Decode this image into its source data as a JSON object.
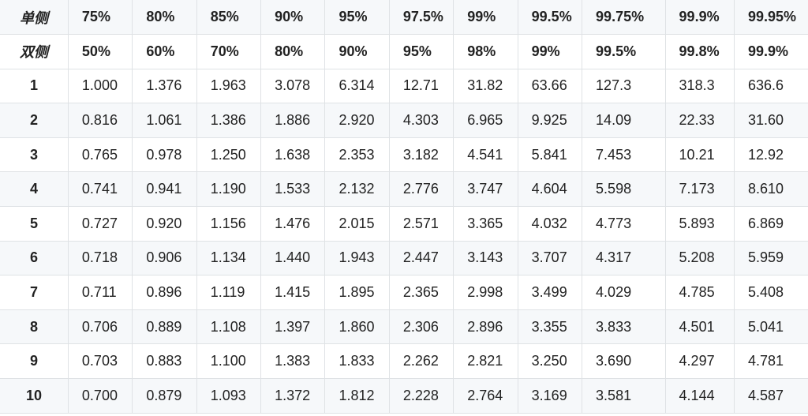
{
  "table": {
    "header_one_sided": {
      "label": "单侧",
      "values": [
        "75%",
        "80%",
        "85%",
        "90%",
        "95%",
        "97.5%",
        "99%",
        "99.5%",
        "99.75%",
        "99.9%",
        "99.95%"
      ]
    },
    "header_two_sided": {
      "label": "双侧",
      "values": [
        "50%",
        "60%",
        "70%",
        "80%",
        "90%",
        "95%",
        "98%",
        "99%",
        "99.5%",
        "99.8%",
        "99.9%"
      ]
    },
    "rows": [
      {
        "df": "1",
        "values": [
          "1.000",
          "1.376",
          "1.963",
          "3.078",
          "6.314",
          "12.71",
          "31.82",
          "63.66",
          "127.3",
          "318.3",
          "636.6"
        ]
      },
      {
        "df": "2",
        "values": [
          "0.816",
          "1.061",
          "1.386",
          "1.886",
          "2.920",
          "4.303",
          "6.965",
          "9.925",
          "14.09",
          "22.33",
          "31.60"
        ]
      },
      {
        "df": "3",
        "values": [
          "0.765",
          "0.978",
          "1.250",
          "1.638",
          "2.353",
          "3.182",
          "4.541",
          "5.841",
          "7.453",
          "10.21",
          "12.92"
        ]
      },
      {
        "df": "4",
        "values": [
          "0.741",
          "0.941",
          "1.190",
          "1.533",
          "2.132",
          "2.776",
          "3.747",
          "4.604",
          "5.598",
          "7.173",
          "8.610"
        ]
      },
      {
        "df": "5",
        "values": [
          "0.727",
          "0.920",
          "1.156",
          "1.476",
          "2.015",
          "2.571",
          "3.365",
          "4.032",
          "4.773",
          "5.893",
          "6.869"
        ]
      },
      {
        "df": "6",
        "values": [
          "0.718",
          "0.906",
          "1.134",
          "1.440",
          "1.943",
          "2.447",
          "3.143",
          "3.707",
          "4.317",
          "5.208",
          "5.959"
        ]
      },
      {
        "df": "7",
        "values": [
          "0.711",
          "0.896",
          "1.119",
          "1.415",
          "1.895",
          "2.365",
          "2.998",
          "3.499",
          "4.029",
          "4.785",
          "5.408"
        ]
      },
      {
        "df": "8",
        "values": [
          "0.706",
          "0.889",
          "1.108",
          "1.397",
          "1.860",
          "2.306",
          "2.896",
          "3.355",
          "3.833",
          "4.501",
          "5.041"
        ]
      },
      {
        "df": "9",
        "values": [
          "0.703",
          "0.883",
          "1.100",
          "1.383",
          "1.833",
          "2.262",
          "2.821",
          "3.250",
          "3.690",
          "4.297",
          "4.781"
        ]
      },
      {
        "df": "10",
        "values": [
          "0.700",
          "0.879",
          "1.093",
          "1.372",
          "1.812",
          "2.228",
          "2.764",
          "3.169",
          "3.581",
          "4.144",
          "4.587"
        ]
      }
    ]
  },
  "colors": {
    "header_background": "#f6f8fa",
    "border": "#dfe2e5",
    "text": "#222222"
  }
}
